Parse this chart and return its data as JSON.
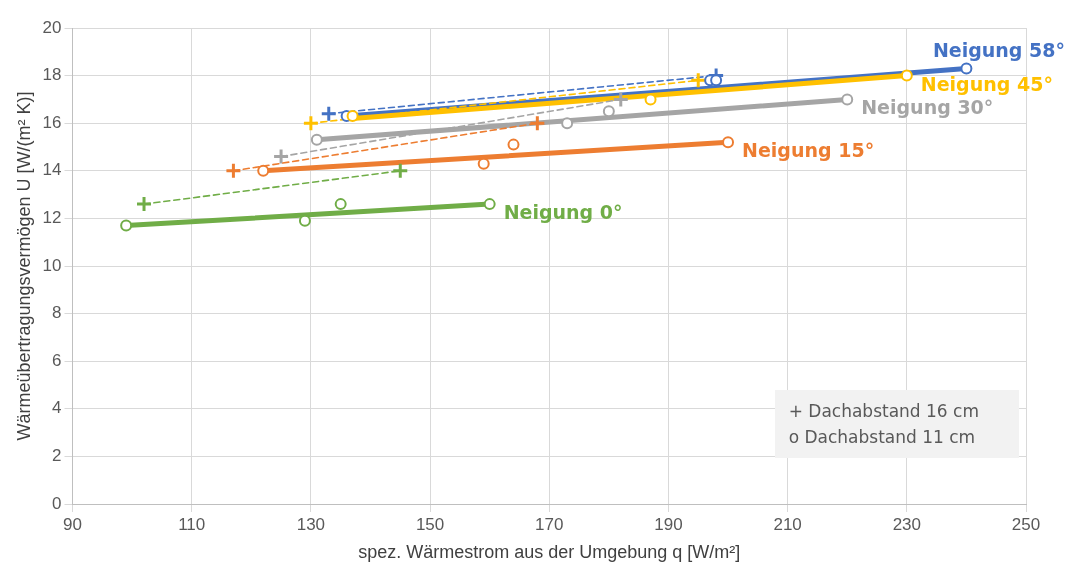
{
  "chart_data": {
    "type": "line",
    "xlabel": "spez. Wärmestrom aus der Umgebung q [W/m²]",
    "ylabel": "Wärmeübertragungsvermögen U [W/(m² K)]",
    "xlim": [
      90,
      250
    ],
    "xticks": [
      90,
      110,
      130,
      150,
      170,
      190,
      210,
      230,
      250
    ],
    "ylim": [
      0,
      20
    ],
    "yticks": [
      0,
      2,
      4,
      6,
      8,
      10,
      12,
      14,
      16,
      18,
      20
    ],
    "grid": true,
    "legend": false,
    "annotations": [
      "+ Dachabstand 16 cm",
      "o Dachabstand 11 cm"
    ],
    "series": [
      {
        "name": "Neigung 0°",
        "color": "#70ad47",
        "x": [
          99,
          160
        ],
        "values": [
          11.7,
          12.6
        ],
        "line_style": "solid",
        "marker": "none"
      },
      {
        "name": "Neigung 15°",
        "color": "#ed7d31",
        "x": [
          122,
          200
        ],
        "values": [
          14,
          15.2
        ],
        "line_style": "solid",
        "marker": "none"
      },
      {
        "name": "Neigung 30°",
        "color": "#a5a5a5",
        "x": [
          131,
          220
        ],
        "values": [
          15.3,
          17
        ],
        "line_style": "solid",
        "marker": "none"
      },
      {
        "name": "Neigung 45°",
        "color": "#ffc000",
        "x": [
          137,
          230
        ],
        "values": [
          16.2,
          18
        ],
        "line_style": "solid",
        "marker": "none"
      },
      {
        "name": "Neigung 58°",
        "color": "#4472c4",
        "x": [
          136,
          240
        ],
        "values": [
          16.3,
          18.3
        ],
        "line_style": "solid",
        "marker": "none"
      },
      {
        "type": "scatter",
        "color": "#70ad47",
        "x": [
          99,
          129,
          135,
          160
        ],
        "values": [
          11.7,
          11.9,
          12.6,
          12.6
        ],
        "marker": "circle"
      },
      {
        "type": "scatter",
        "color": "#ed7d31",
        "x": [
          122,
          159,
          164,
          200
        ],
        "values": [
          14,
          14.3,
          15.1,
          15.2
        ],
        "marker": "circle"
      },
      {
        "type": "scatter",
        "color": "#a5a5a5",
        "x": [
          131,
          173,
          180,
          220
        ],
        "values": [
          15.3,
          16,
          16.5,
          17
        ],
        "marker": "circle"
      },
      {
        "type": "scatter",
        "color": "#ffc000",
        "x": [
          137,
          187,
          230
        ],
        "values": [
          16.3,
          17,
          18
        ],
        "marker": "circle"
      },
      {
        "type": "scatter",
        "color": "#4472c4",
        "x": [
          136,
          197,
          198,
          240
        ],
        "values": [
          16.3,
          17.8,
          17.8,
          18.3
        ],
        "marker": "circle"
      },
      {
        "type": "line",
        "color": "#70ad47",
        "x": [
          102,
          145
        ],
        "values": [
          12.6,
          14
        ],
        "line_style": "dashed",
        "marker": "cross"
      },
      {
        "type": "line",
        "color": "#ed7d31",
        "x": [
          117,
          168
        ],
        "values": [
          14,
          16
        ],
        "line_style": "dashed",
        "marker": "cross"
      },
      {
        "type": "line",
        "color": "#a5a5a5",
        "x": [
          125,
          182
        ],
        "values": [
          14.6,
          17
        ],
        "line_style": "dashed",
        "marker": "cross"
      },
      {
        "type": "line",
        "color": "#ffc000",
        "x": [
          130,
          195
        ],
        "values": [
          16,
          17.8
        ],
        "line_style": "dashed",
        "marker": "cross"
      },
      {
        "type": "line",
        "color": "#4472c4",
        "x": [
          133,
          198
        ],
        "values": [
          16.4,
          18
        ],
        "line_style": "dashed",
        "marker": "cross"
      }
    ]
  }
}
